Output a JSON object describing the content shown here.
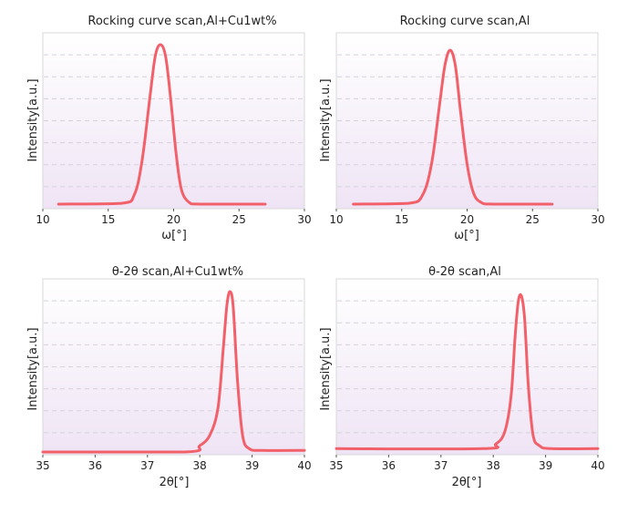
{
  "chart_data": [
    {
      "type": "line",
      "title": "Rocking curve scan,Al+Cu1wt%",
      "xlabel": "ω[°]",
      "ylabel": "Intensity[a.u.]",
      "xlim": [
        10,
        30
      ],
      "xticks": [
        "10",
        "15",
        "20",
        "25",
        "30"
      ],
      "series": [
        {
          "x": [
            11.2,
            16.0,
            17.0,
            17.6,
            18.2,
            18.6,
            19.0,
            19.4,
            19.8,
            20.2,
            20.6,
            21.2,
            22.0,
            27.0
          ],
          "y": [
            0.0,
            0.005,
            0.06,
            0.28,
            0.68,
            0.93,
            1.0,
            0.92,
            0.64,
            0.31,
            0.09,
            0.01,
            0.0,
            0.0
          ]
        }
      ]
    },
    {
      "type": "line",
      "title": "Rocking curve scan,Al",
      "xlabel": "ω[°]",
      "ylabel": "Intensity[a.u.]",
      "xlim": [
        10,
        30
      ],
      "xticks": [
        "10",
        "15",
        "20",
        "25",
        "30"
      ],
      "series": [
        {
          "x": [
            11.3,
            15.5,
            16.6,
            17.3,
            17.9,
            18.3,
            18.7,
            19.1,
            19.5,
            20.0,
            20.5,
            21.1,
            22.0,
            26.5
          ],
          "y": [
            0.0,
            0.005,
            0.06,
            0.27,
            0.65,
            0.9,
            1.0,
            0.9,
            0.6,
            0.26,
            0.07,
            0.01,
            0.0,
            0.0
          ]
        }
      ]
    },
    {
      "type": "line",
      "title": "θ-2θ scan,Al+Cu1wt%",
      "xlabel": "2θ[°]",
      "ylabel": "Intensity[a.u.]",
      "xlim": [
        35,
        40
      ],
      "xticks": [
        "35",
        "36",
        "37",
        "38",
        "39",
        "40"
      ],
      "series": [
        {
          "x": [
            35.0,
            37.7,
            38.0,
            38.2,
            38.35,
            38.45,
            38.52,
            38.58,
            38.64,
            38.72,
            38.82,
            38.95,
            39.2,
            40.0
          ],
          "y": [
            0.0,
            0.0,
            0.04,
            0.11,
            0.28,
            0.65,
            0.92,
            1.0,
            0.9,
            0.45,
            0.1,
            0.02,
            0.01,
            0.01
          ]
        }
      ]
    },
    {
      "type": "line",
      "title": "θ-2θ scan,Al",
      "xlabel": "2θ[°]",
      "ylabel": "Intensity[a.u.]",
      "xlim": [
        35,
        40
      ],
      "xticks": [
        "35",
        "36",
        "37",
        "38",
        "39",
        "40"
      ],
      "series": [
        {
          "x": [
            35.0,
            37.8,
            38.05,
            38.22,
            38.34,
            38.42,
            38.48,
            38.54,
            38.6,
            38.67,
            38.76,
            38.88,
            39.1,
            40.0
          ],
          "y": [
            0.01,
            0.01,
            0.04,
            0.12,
            0.35,
            0.75,
            0.97,
            1.0,
            0.85,
            0.42,
            0.1,
            0.03,
            0.01,
            0.01
          ]
        }
      ]
    }
  ],
  "colors": {
    "line": "#f2606a",
    "plot_background_top": "#ffffff",
    "plot_background_bottom": "#efe4f5"
  }
}
